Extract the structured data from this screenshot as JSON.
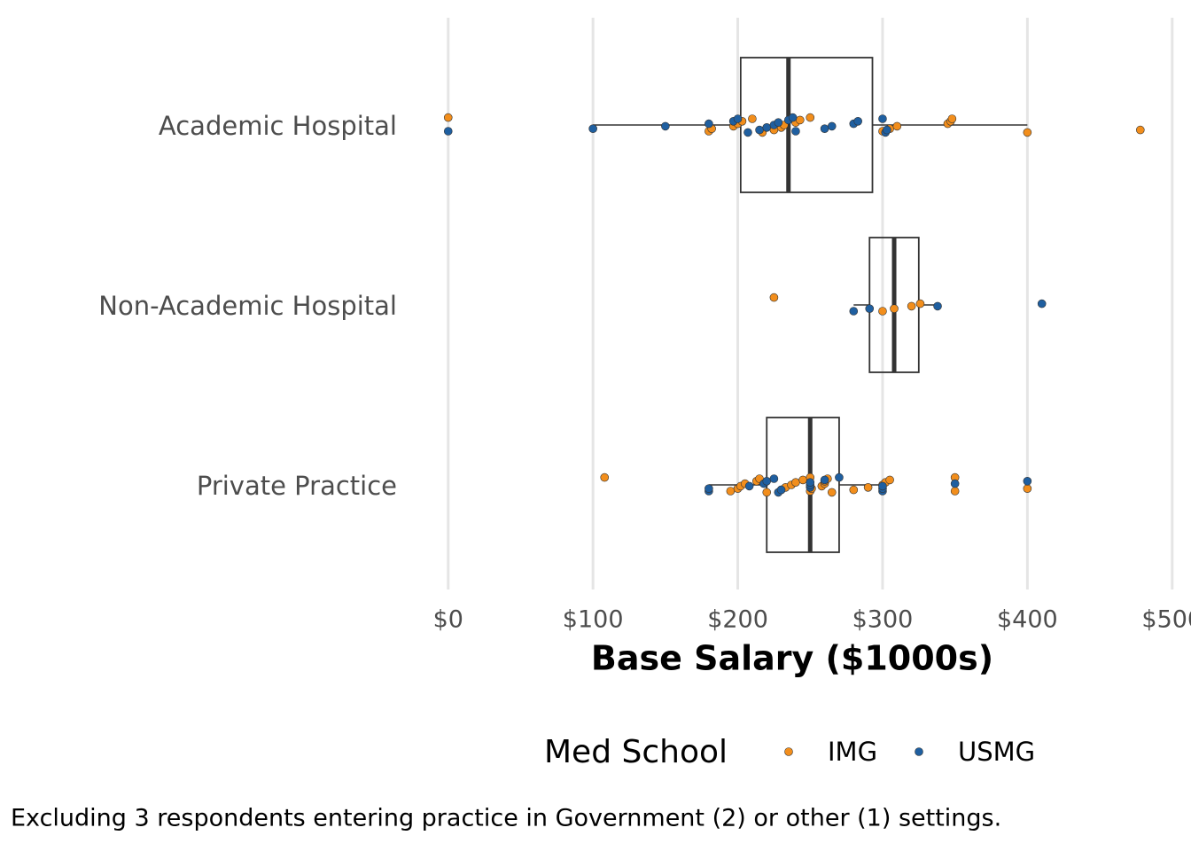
{
  "chart_data": {
    "type": "box-strip",
    "x_label": "Base Salary ($1000s)",
    "caption": "Excluding 3 respondents entering practice in Government (2) or other (1) settings.",
    "legend_title": "Med School",
    "categories": [
      "Academic Hospital",
      "Non-Academic Hospital",
      "Private Practice"
    ],
    "boxes": [
      {
        "whisker_low": 100,
        "q1": 202,
        "median": 235,
        "q3": 293,
        "whisker_high": 400
      },
      {
        "whisker_low": 280,
        "q1": 291,
        "median": 308,
        "q3": 325,
        "whisker_high": 338
      },
      {
        "whisker_low": 180,
        "q1": 220,
        "median": 250,
        "q3": 270,
        "whisker_high": 300
      }
    ],
    "series": [
      {
        "name": "IMG",
        "color": "#f28e1c",
        "values": [
          [
            0,
            180,
            182,
            197,
            200,
            203,
            210,
            217,
            225,
            230,
            232,
            240,
            243,
            250,
            300,
            305,
            310,
            345,
            347,
            348,
            400,
            478
          ],
          [
            225,
            300,
            308,
            320,
            326
          ],
          [
            108,
            195,
            200,
            202,
            205,
            213,
            215,
            220,
            230,
            233,
            237,
            240,
            245,
            250,
            250,
            251,
            258,
            260,
            260,
            262,
            265,
            280,
            290,
            300,
            302,
            305,
            350,
            350,
            400
          ]
        ]
      },
      {
        "name": "USMG",
        "color": "#1f5fa0",
        "values": [
          [
            0,
            100,
            150,
            180,
            197,
            200,
            207,
            215,
            220,
            225,
            228,
            235,
            238,
            240,
            260,
            265,
            280,
            283,
            300,
            302,
            303
          ],
          [
            280,
            291,
            338,
            410
          ],
          [
            180,
            180,
            208,
            218,
            220,
            225,
            228,
            230,
            250,
            250,
            250,
            260,
            270,
            300,
            300,
            300,
            350,
            400
          ]
        ]
      }
    ],
    "xlim": [
      -28,
      513
    ],
    "xticks": [
      {
        "value": 0,
        "label": "$0"
      },
      {
        "value": 100,
        "label": "$100"
      },
      {
        "value": 200,
        "label": "$200"
      },
      {
        "value": 300,
        "label": "$300"
      },
      {
        "value": 400,
        "label": "$400"
      },
      {
        "value": 500,
        "label": "$500"
      }
    ],
    "grid": true
  }
}
